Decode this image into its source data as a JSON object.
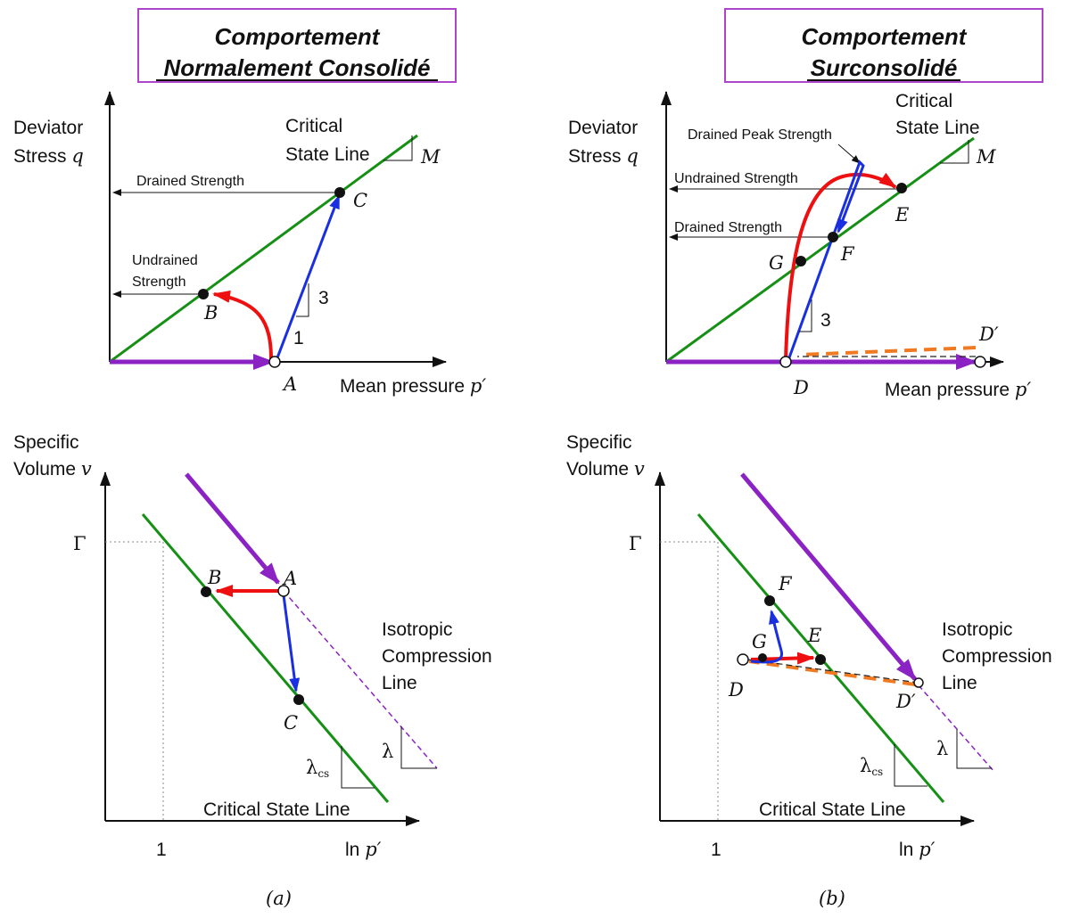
{
  "panel_a": {
    "title_line1": "Comportement",
    "title_line2": "Normalement Consolidé",
    "top": {
      "y_label_1": "Deviator",
      "y_label_2": "Stress",
      "y_var": "q",
      "x_label": "Mean pressure",
      "x_var": "p′",
      "csl_label_1": "Critical",
      "csl_label_2": "State Line",
      "slope_M": "M",
      "drained_strength": "Drained Strength",
      "undrained_1": "Undrained",
      "undrained_2": "Strength",
      "slope_3": "3",
      "slope_1": "1",
      "point_A": "A",
      "point_B": "B",
      "point_C": "C"
    },
    "bottom": {
      "y_label_1": "Specific",
      "y_label_2": "Volume",
      "y_var": "v",
      "gamma": "Γ",
      "x_tick_1": "1",
      "x_label": "ln",
      "x_var": "p′",
      "icl_1": "Isotropic",
      "icl_2": "Compression",
      "icl_3": "Line",
      "csl_label": "Critical State Line",
      "lambda": "λ",
      "lambda_cs": "λ",
      "lambda_cs_sub": "cs",
      "point_A": "A",
      "point_B": "B",
      "point_C": "C"
    },
    "caption": "(a)"
  },
  "panel_b": {
    "title_line1": "Comportement",
    "title_line2": "Surconsolidé",
    "top": {
      "y_label_1": "Deviator",
      "y_label_2": "Stress",
      "y_var": "q",
      "x_label": "Mean pressure",
      "x_var": "p′",
      "csl_label_1": "Critical",
      "csl_label_2": "State Line",
      "slope_M": "M",
      "peak_label": "Drained Peak Strength",
      "undrained_strength": "Undrained Strength",
      "drained_strength": "Drained Strength",
      "slope_3": "3",
      "point_D": "D",
      "point_Dp": "D′",
      "point_E": "E",
      "point_F": "F",
      "point_G": "G"
    },
    "bottom": {
      "y_label_1": "Specific",
      "y_label_2": "Volume",
      "y_var": "v",
      "gamma": "Γ",
      "x_tick_1": "1",
      "x_label": "ln",
      "x_var": "p′",
      "icl_1": "Isotropic",
      "icl_2": "Compression",
      "icl_3": "Line",
      "csl_label": "Critical State Line",
      "lambda": "λ",
      "lambda_cs": "λ",
      "lambda_cs_sub": "cs",
      "point_D": "D",
      "point_Dp": "D′",
      "point_E": "E",
      "point_F": "F",
      "point_G": "G"
    },
    "caption": "(b)"
  },
  "colors": {
    "critical_state_line": "#159015",
    "drained_path": "#1a2fe0",
    "undrained_path": "#ee1010",
    "compression_path": "#8b22c4",
    "unloading_path": "#f07a22",
    "title_border": "#b044c8"
  }
}
